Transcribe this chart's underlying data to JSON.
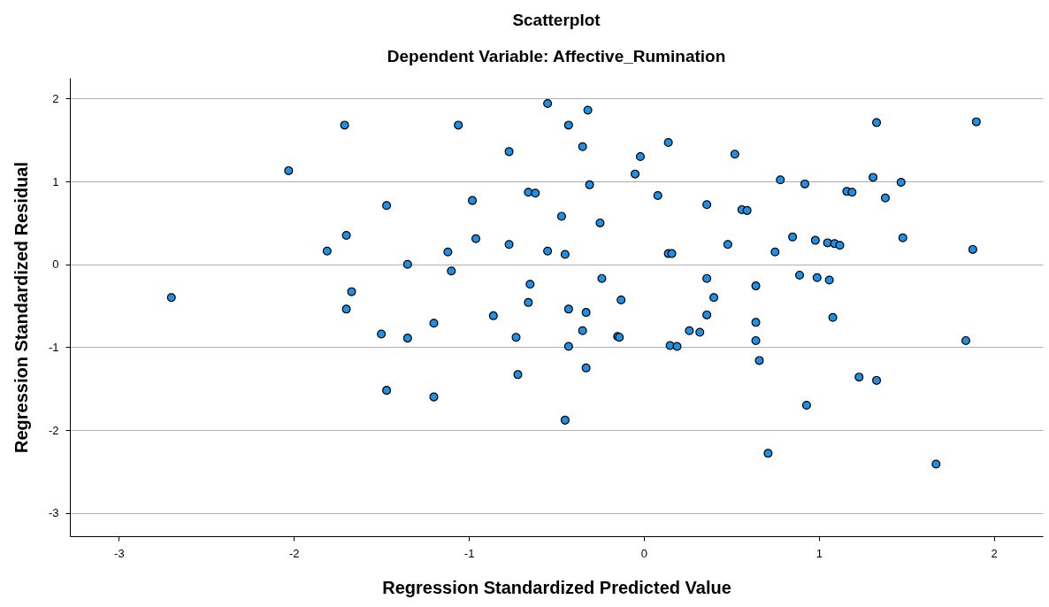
{
  "chart_data": {
    "type": "scatter",
    "title": "Scatterplot",
    "subtitle": "Dependent Variable: Affective_Rumination",
    "xlabel": "Regression Standardized Predicted Value",
    "ylabel": "Regression Standardized Residual",
    "xlim": [
      -3.28,
      2.28
    ],
    "ylim": [
      -3.28,
      2.25
    ],
    "xticks": [
      -3,
      -2,
      -1,
      0,
      1,
      2
    ],
    "yticks": [
      -3,
      -2,
      -1,
      0,
      1,
      2
    ],
    "grid": "y",
    "marker": "circle",
    "series": [
      {
        "color": "#1e90e6",
        "x": [
          -1.71,
          -2.03,
          -1.47,
          -1.7,
          -1.81,
          -1.35,
          -2.7,
          -1.67,
          -1.7,
          -1.5,
          -1.35,
          -1.47,
          -0.55,
          -0.32,
          -1.06,
          -0.43,
          -0.35,
          -0.77,
          0.14,
          -0.02,
          -0.05,
          -0.31,
          -0.66,
          -0.62,
          0.08,
          -0.98,
          0.36,
          -0.47,
          -0.25,
          -0.96,
          -0.77,
          -1.12,
          -0.55,
          -0.45,
          0.14,
          0.16,
          0.48,
          -1.1,
          -0.24,
          0.36,
          -0.65,
          -0.13,
          0.4,
          -0.66,
          -0.43,
          -0.33,
          0.36,
          -0.86,
          -1.2,
          -0.35,
          0.26,
          0.32,
          -0.15,
          -0.14,
          -0.73,
          -0.43,
          0.15,
          0.19,
          -0.33,
          -0.72,
          -1.2,
          -0.45,
          1.33,
          1.9,
          0.52,
          0.78,
          0.92,
          1.31,
          1.47,
          1.16,
          1.19,
          1.38,
          0.56,
          0.59,
          0.85,
          0.98,
          1.05,
          1.09,
          1.12,
          1.48,
          0.75,
          1.88,
          0.89,
          0.99,
          1.06,
          0.64,
          1.08,
          0.64,
          0.64,
          1.84,
          0.66,
          1.23,
          1.33,
          0.93,
          0.71,
          1.67
        ],
        "values": [
          1.68,
          1.13,
          0.71,
          0.35,
          0.16,
          0.0,
          -0.4,
          -0.33,
          -0.54,
          -0.84,
          -0.89,
          -1.52,
          1.94,
          1.86,
          1.68,
          1.68,
          1.42,
          1.36,
          1.47,
          1.3,
          1.09,
          0.96,
          0.87,
          0.86,
          0.83,
          0.77,
          0.72,
          0.58,
          0.5,
          0.31,
          0.24,
          0.15,
          0.16,
          0.12,
          0.13,
          0.13,
          0.24,
          -0.08,
          -0.17,
          -0.17,
          -0.24,
          -0.43,
          -0.4,
          -0.46,
          -0.54,
          -0.58,
          -0.61,
          -0.62,
          -0.71,
          -0.8,
          -0.8,
          -0.82,
          -0.87,
          -0.88,
          -0.88,
          -0.99,
          -0.98,
          -0.99,
          -1.25,
          -1.33,
          -1.6,
          -1.88,
          1.71,
          1.72,
          1.33,
          1.02,
          0.97,
          1.05,
          0.99,
          0.88,
          0.87,
          0.8,
          0.66,
          0.65,
          0.33,
          0.29,
          0.26,
          0.25,
          0.23,
          0.32,
          0.15,
          0.18,
          -0.13,
          -0.16,
          -0.19,
          -0.26,
          -0.64,
          -0.7,
          -0.92,
          -0.92,
          -1.16,
          -1.36,
          -1.4,
          -1.7,
          -2.28,
          -2.41
        ]
      }
    ]
  }
}
